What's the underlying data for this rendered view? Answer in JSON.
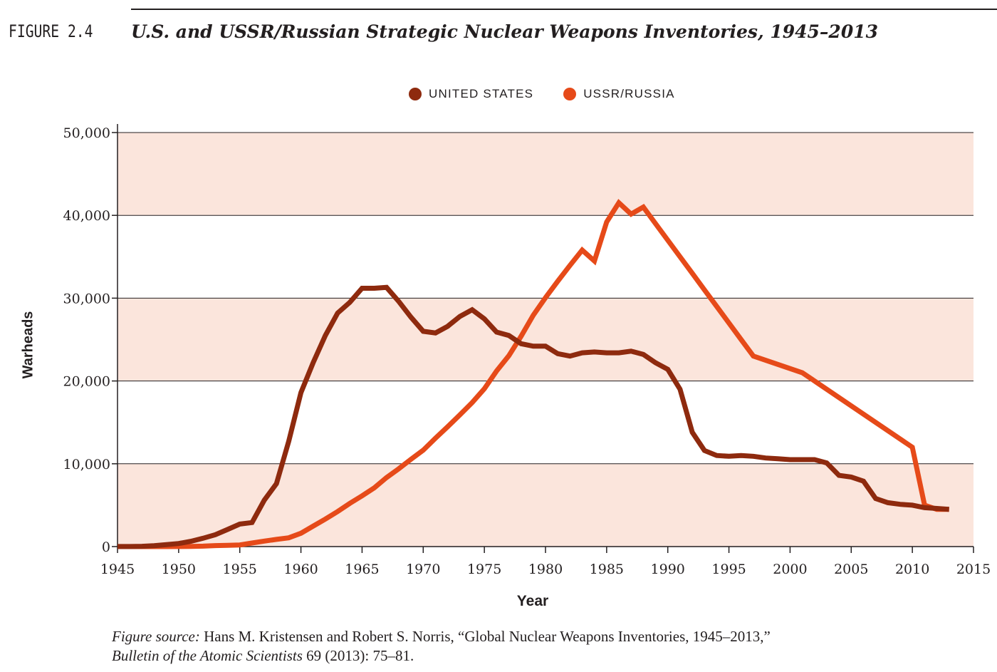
{
  "header": {
    "figure_label": "FIGURE 2.4",
    "title": "U.S. and USSR/Russian Strategic Nuclear Weapons Inventories, 1945–2013"
  },
  "colors": {
    "us": "#8e2a0e",
    "ussr": "#e64a19",
    "band": "#fbe5dc",
    "text": "#231f20"
  },
  "chart_data": {
    "type": "line",
    "xlabel": "Year",
    "ylabel": "Warheads",
    "xlim": [
      1945,
      2015
    ],
    "ylim": [
      0,
      50000
    ],
    "xticks": [
      "1945",
      "1950",
      "1955",
      "1960",
      "1965",
      "1970",
      "1975",
      "1980",
      "1985",
      "1990",
      "1995",
      "2000",
      "2005",
      "2010",
      "2015"
    ],
    "yticks": [
      "0",
      "10,000",
      "20,000",
      "30,000",
      "40,000",
      "50,000"
    ],
    "grid": "horizontal",
    "legend_position": "top-center",
    "series": [
      {
        "name": "UNITED STATES",
        "color": "#8e2a0e",
        "x": [
          1945,
          1946,
          1947,
          1948,
          1949,
          1950,
          1951,
          1952,
          1953,
          1954,
          1955,
          1956,
          1957,
          1958,
          1959,
          1960,
          1961,
          1962,
          1963,
          1964,
          1965,
          1966,
          1967,
          1968,
          1969,
          1970,
          1971,
          1972,
          1973,
          1974,
          1975,
          1976,
          1977,
          1978,
          1979,
          1980,
          1981,
          1982,
          1983,
          1984,
          1985,
          1986,
          1987,
          1988,
          1989,
          1990,
          1991,
          1992,
          1993,
          1994,
          1995,
          1996,
          1997,
          1998,
          1999,
          2000,
          2001,
          2002,
          2003,
          2004,
          2005,
          2006,
          2007,
          2008,
          2009,
          2010,
          2011,
          2012,
          2013
        ],
        "y": [
          6,
          11,
          32,
          110,
          235,
          369,
          640,
          1005,
          1436,
          2063,
          2719,
          2900,
          5600,
          7600,
          12700,
          18600,
          22200,
          25500,
          28200,
          29500,
          31200,
          31200,
          31300,
          29600,
          27700,
          26000,
          25800,
          26600,
          27800,
          28600,
          27500,
          25900,
          25500,
          24500,
          24200,
          24200,
          23300,
          23000,
          23400,
          23500,
          23400,
          23400,
          23600,
          23200,
          22200,
          21400,
          19000,
          13800,
          11600,
          11000,
          10900,
          11000,
          10900,
          10700,
          10600,
          10500,
          10500,
          10500,
          10100,
          8600,
          8400,
          7900,
          5800,
          5300,
          5100,
          5000,
          4700,
          4600,
          4500
        ]
      },
      {
        "name": "USSR/RUSSIA",
        "color": "#e64a19",
        "x": [
          1945,
          1946,
          1947,
          1948,
          1949,
          1950,
          1951,
          1952,
          1953,
          1954,
          1955,
          1956,
          1957,
          1958,
          1959,
          1960,
          1961,
          1962,
          1963,
          1964,
          1965,
          1966,
          1967,
          1968,
          1969,
          1970,
          1971,
          1972,
          1973,
          1974,
          1975,
          1976,
          1977,
          1978,
          1979,
          1980,
          1981,
          1982,
          1983,
          1984,
          1985,
          1986,
          1987,
          1988,
          1989,
          1990,
          1991,
          1992,
          1993,
          1994,
          1995,
          1996,
          1997,
          2001,
          2010,
          2011,
          2012,
          2013
        ],
        "y": [
          0,
          0,
          0,
          0,
          1,
          5,
          25,
          50,
          120,
          150,
          200,
          426,
          660,
          869,
          1060,
          1605,
          2471,
          3322,
          4238,
          5221,
          6129,
          7089,
          8339,
          9399,
          10538,
          11643,
          13092,
          14478,
          15915,
          17385,
          19055,
          21205,
          23044,
          25393,
          27935,
          30062,
          32049,
          33952,
          35804,
          34484,
          39197,
          41523,
          40159,
          41000,
          39000,
          37000,
          35000,
          33000,
          31000,
          29000,
          27000,
          25000,
          23000,
          21000,
          12000,
          5000,
          4500,
          4500
        ]
      }
    ]
  },
  "source": {
    "prefix": "Figure source:",
    "text": " Hans M. Kristensen and Robert S. Norris, “Global Nuclear Weapons Inventories, 1945–2013,”",
    "journal": "Bulletin of the Atomic Scientists",
    "citation": " 69 (2013): 75–81."
  }
}
